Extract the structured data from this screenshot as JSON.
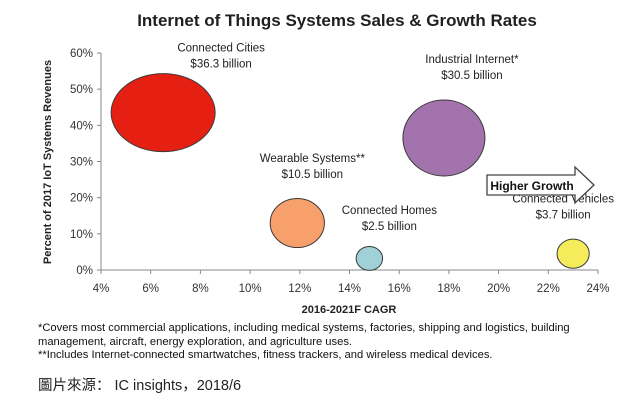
{
  "chart_data": {
    "type": "bubble",
    "title": "Internet of Things Systems Sales & Growth Rates",
    "xlabel": "2016-2021F CAGR",
    "ylabel": "Percent of 2017 IoT Systems Revenues",
    "xlim": [
      4,
      24
    ],
    "ylim": [
      0,
      60
    ],
    "x_ticks": [
      "4%",
      "6%",
      "8%",
      "10%",
      "12%",
      "14%",
      "16%",
      "18%",
      "20%",
      "22%",
      "24%"
    ],
    "y_ticks": [
      "0%",
      "10%",
      "20%",
      "30%",
      "40%",
      "50%",
      "60%"
    ],
    "grid": false,
    "points": [
      {
        "name": "Connected Cities",
        "value_label": "$36.3 billion",
        "x": 6.5,
        "y": 43.5,
        "size": 36.3,
        "color": "#e51f12"
      },
      {
        "name": "Industrial Internet*",
        "value_label": "$30.5 billion",
        "x": 17.8,
        "y": 36.5,
        "size": 30.5,
        "color": "#a373ad"
      },
      {
        "name": "Wearable Systems**",
        "value_label": "$10.5 billion",
        "x": 11.9,
        "y": 13.0,
        "size": 10.5,
        "color": "#f7a06b"
      },
      {
        "name": "Connected Homes",
        "value_label": "$2.5 billion",
        "x": 14.8,
        "y": 3.2,
        "size": 2.5,
        "color": "#9fd1d6"
      },
      {
        "name": "Connected Vehicles",
        "value_label": "$3.7 billion",
        "x": 23.0,
        "y": 4.5,
        "size": 3.7,
        "color": "#f4ec5a"
      }
    ],
    "annotation": "Higher Growth"
  },
  "footnotes": {
    "note1": "*Covers most commercial applications, including medical systems, factories, shipping and logistics, building management, aircraft, energy exploration, and agriculture uses.",
    "note2": "**Includes Internet-connected smartwatches, fitness trackers, and wireless medical devices."
  },
  "source": "圖片來源： IC insights，2018/6"
}
